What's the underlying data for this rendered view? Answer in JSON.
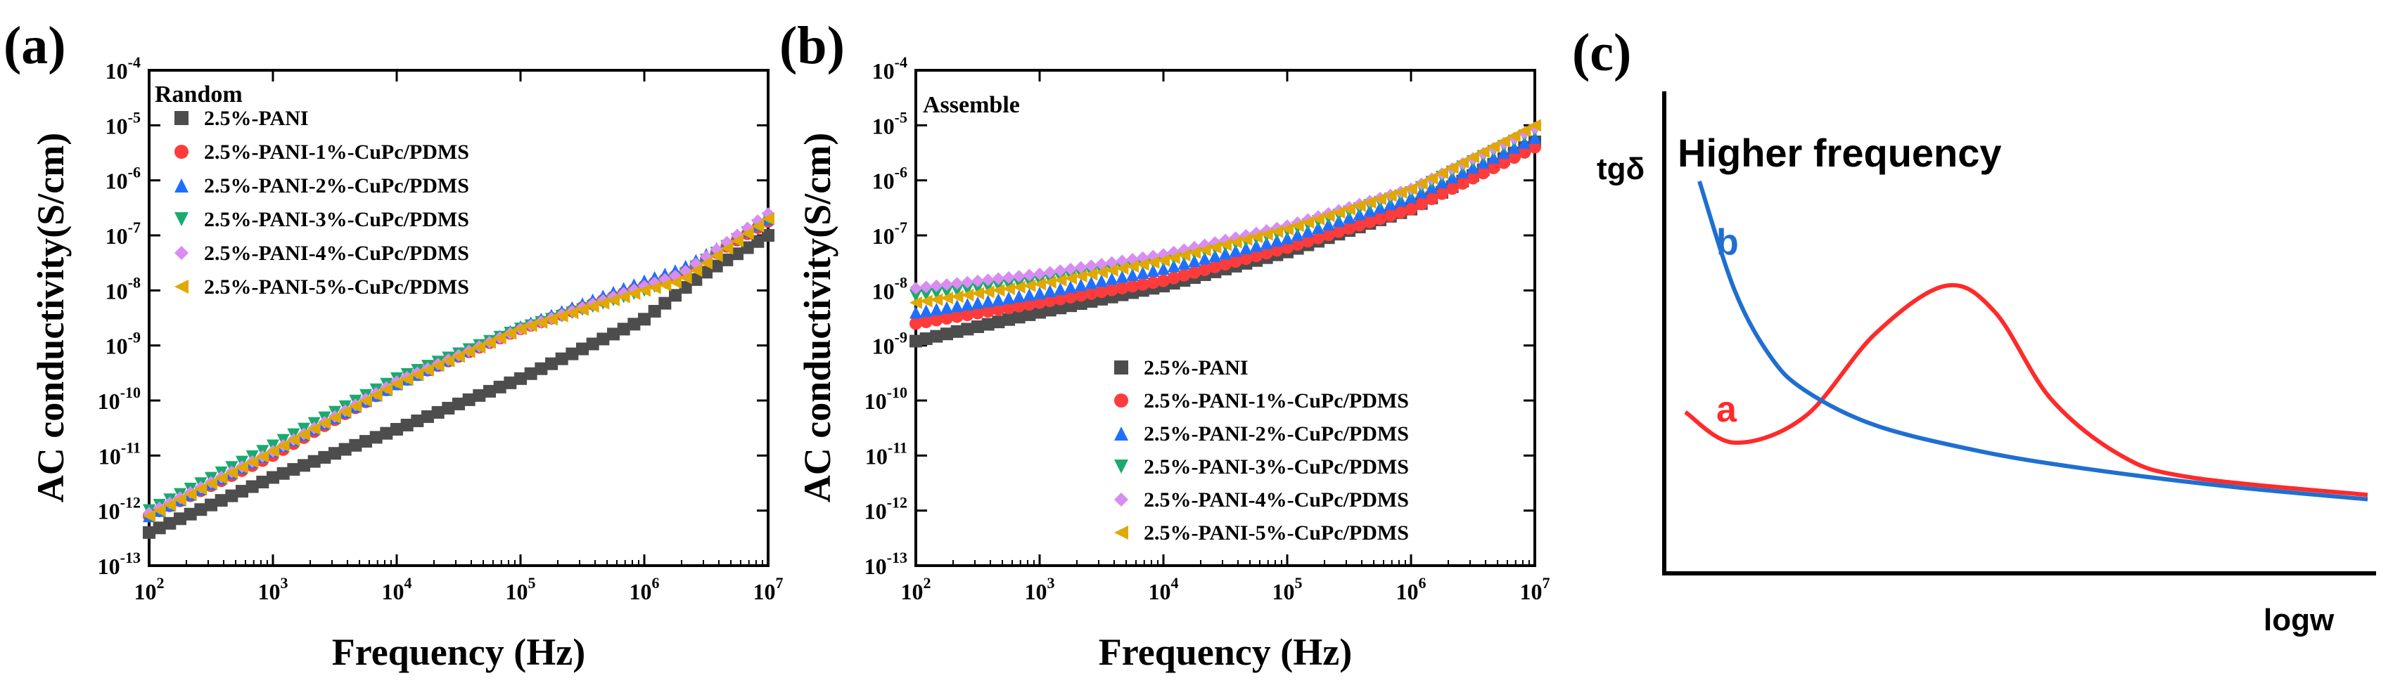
{
  "panels": {
    "a": {
      "label": "(a)"
    },
    "b": {
      "label": "(b)"
    },
    "c": {
      "label": "(c)"
    }
  },
  "tick_labels": {
    "x": [
      "10^2",
      "10^3",
      "10^4",
      "10^5",
      "10^6",
      "10^7"
    ],
    "y": [
      "10^-4",
      "10^-5",
      "10^-6",
      "10^-7",
      "10^-8",
      "10^-9",
      "10^-10",
      "10^-11",
      "10^-12",
      "10^-13"
    ]
  },
  "chart_data": [
    {
      "id": "a",
      "type": "scatter",
      "annotation": "Random",
      "xlabel": "Frequency (Hz)",
      "ylabel": "AC conductivity(S/cm)",
      "xscale": "log",
      "yscale": "log",
      "xlim": [
        100,
        10000000
      ],
      "ylim": [
        1e-13,
        0.0001
      ],
      "legend_position": "top-left",
      "series": [
        {
          "name": "2.5%-PANI",
          "color": "#4d4d4d",
          "marker": "square",
          "x": [
            100,
            1000,
            10000,
            100000,
            1000000,
            2000000,
            3000000,
            10000000
          ],
          "y": [
            4e-13,
            4e-12,
            3e-11,
            2.5e-10,
            3e-09,
            1e-08,
            2e-08,
            1e-07
          ]
        },
        {
          "name": "2.5%-PANI-1%-CuPc/PDMS",
          "color": "#ff3b3b",
          "marker": "circle",
          "x": [
            100,
            1000,
            10000,
            100000,
            1000000,
            2000000,
            10000000
          ],
          "y": [
            8e-13,
            1e-11,
            2e-10,
            2e-09,
            1.2e-08,
            2e-08,
            1.8e-07
          ]
        },
        {
          "name": "2.5%-PANI-2%-CuPc/PDMS",
          "color": "#1f6fff",
          "marker": "triangle-up",
          "x": [
            100,
            1000,
            10000,
            100000,
            1000000,
            2000000,
            10000000
          ],
          "y": [
            8e-13,
            1.2e-11,
            2e-10,
            2.2e-09,
            1.5e-08,
            2.5e-08,
            2e-07
          ]
        },
        {
          "name": "2.5%-PANI-3%-CuPc/PDMS",
          "color": "#1aaa6e",
          "marker": "triangle-down",
          "x": [
            100,
            1000,
            10000,
            100000,
            1000000,
            2000000,
            10000000
          ],
          "y": [
            1e-12,
            1.5e-11,
            2.5e-10,
            2e-09,
            1e-08,
            1.8e-08,
            2e-07
          ]
        },
        {
          "name": "2.5%-PANI-4%-CuPc/PDMS",
          "color": "#d98cf2",
          "marker": "diamond",
          "x": [
            100,
            1000,
            10000,
            100000,
            1000000,
            2000000,
            10000000
          ],
          "y": [
            9e-13,
            1.2e-11,
            2.2e-10,
            2e-09,
            1.2e-08,
            2e-08,
            2.5e-07
          ]
        },
        {
          "name": "2.5%-PANI-5%-CuPc/PDMS",
          "color": "#e0a800",
          "marker": "triangle-left",
          "x": [
            100,
            1000,
            10000,
            100000,
            1000000,
            2000000,
            10000000
          ],
          "y": [
            8e-13,
            1.2e-11,
            2e-10,
            2e-09,
            1e-08,
            1.5e-08,
            2e-07
          ]
        }
      ]
    },
    {
      "id": "b",
      "type": "scatter",
      "annotation": "Assemble",
      "xlabel": "Frequency (Hz)",
      "ylabel": "AC conductivity(S/cm)",
      "xscale": "log",
      "yscale": "log",
      "xlim": [
        100,
        10000000
      ],
      "ylim": [
        1e-13,
        0.0001
      ],
      "legend_position": "bottom-right",
      "series": [
        {
          "name": "2.5%-PANI",
          "color": "#4d4d4d",
          "marker": "square",
          "x": [
            100,
            1000,
            10000,
            100000,
            1000000,
            10000000
          ],
          "y": [
            1.2e-09,
            4e-09,
            1.2e-08,
            5e-08,
            3e-07,
            5e-06
          ]
        },
        {
          "name": "2.5%-PANI-1%-CuPc/PDMS",
          "color": "#ff3b3b",
          "marker": "circle",
          "x": [
            100,
            1000,
            10000,
            100000,
            1000000,
            10000000
          ],
          "y": [
            2.5e-09,
            6e-09,
            1.5e-08,
            6e-08,
            3e-07,
            4e-06
          ]
        },
        {
          "name": "2.5%-PANI-2%-CuPc/PDMS",
          "color": "#1f6fff",
          "marker": "triangle-up",
          "x": [
            100,
            1000,
            10000,
            100000,
            1000000,
            10000000
          ],
          "y": [
            4e-09,
            9e-09,
            2.5e-08,
            9e-08,
            5e-07,
            6e-06
          ]
        },
        {
          "name": "2.5%-PANI-3%-CuPc/PDMS",
          "color": "#1aaa6e",
          "marker": "triangle-down",
          "x": [
            100,
            1000,
            10000,
            100000,
            1000000,
            10000000
          ],
          "y": [
            8e-09,
            1.5e-08,
            3.5e-08,
            1.2e-07,
            6e-07,
            8e-06
          ]
        },
        {
          "name": "2.5%-PANI-4%-CuPc/PDMS",
          "color": "#d98cf2",
          "marker": "diamond",
          "x": [
            100,
            1000,
            10000,
            100000,
            1000000,
            10000000
          ],
          "y": [
            1.1e-08,
            2e-08,
            4.5e-08,
            1.5e-07,
            7e-07,
            9e-06
          ]
        },
        {
          "name": "2.5%-PANI-5%-CuPc/PDMS",
          "color": "#e0a800",
          "marker": "triangle-left",
          "x": [
            100,
            1000,
            10000,
            100000,
            1000000,
            10000000
          ],
          "y": [
            6e-09,
            1.3e-08,
            3.5e-08,
            1.3e-07,
            7e-07,
            1e-05
          ]
        }
      ]
    },
    {
      "id": "c",
      "type": "line",
      "annotation": "Higher frequency",
      "xlabel": "logw",
      "ylabel": "tgδ",
      "axis_ticks": "none",
      "series": [
        {
          "name": "a",
          "color": "#ff2a2a",
          "x": [
            0.03,
            0.1,
            0.2,
            0.3,
            0.4,
            0.47,
            0.55,
            0.65,
            0.75,
            1.0
          ],
          "y": [
            0.37,
            0.3,
            0.36,
            0.55,
            0.66,
            0.6,
            0.4,
            0.27,
            0.22,
            0.18
          ]
        },
        {
          "name": "b",
          "color": "#1f6fd1",
          "x": [
            0.05,
            0.1,
            0.15,
            0.2,
            0.3,
            0.45,
            0.6,
            0.8,
            1.0
          ],
          "y": [
            0.9,
            0.65,
            0.5,
            0.42,
            0.34,
            0.28,
            0.24,
            0.2,
            0.17
          ]
        }
      ]
    }
  ]
}
